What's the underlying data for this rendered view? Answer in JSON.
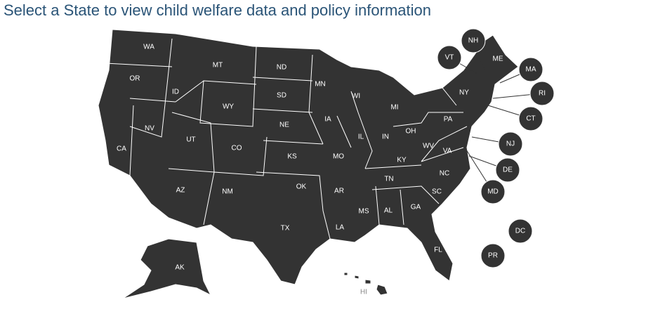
{
  "title": "Select a State to view child welfare data and policy information",
  "states": [
    "WA",
    "OR",
    "CA",
    "NV",
    "ID",
    "MT",
    "WY",
    "UT",
    "CO",
    "AZ",
    "NM",
    "ND",
    "SD",
    "NE",
    "KS",
    "OK",
    "TX",
    "MN",
    "IA",
    "MO",
    "AR",
    "LA",
    "WI",
    "IL",
    "MS",
    "MI",
    "IN",
    "OH",
    "KY",
    "TN",
    "AL",
    "GA",
    "FL",
    "SC",
    "NC",
    "VA",
    "WV",
    "PA",
    "NY",
    "ME",
    "AK",
    "HI"
  ],
  "callouts": [
    "NH",
    "VT",
    "MA",
    "RI",
    "CT",
    "NJ",
    "DE",
    "MD",
    "DC",
    "PR"
  ]
}
